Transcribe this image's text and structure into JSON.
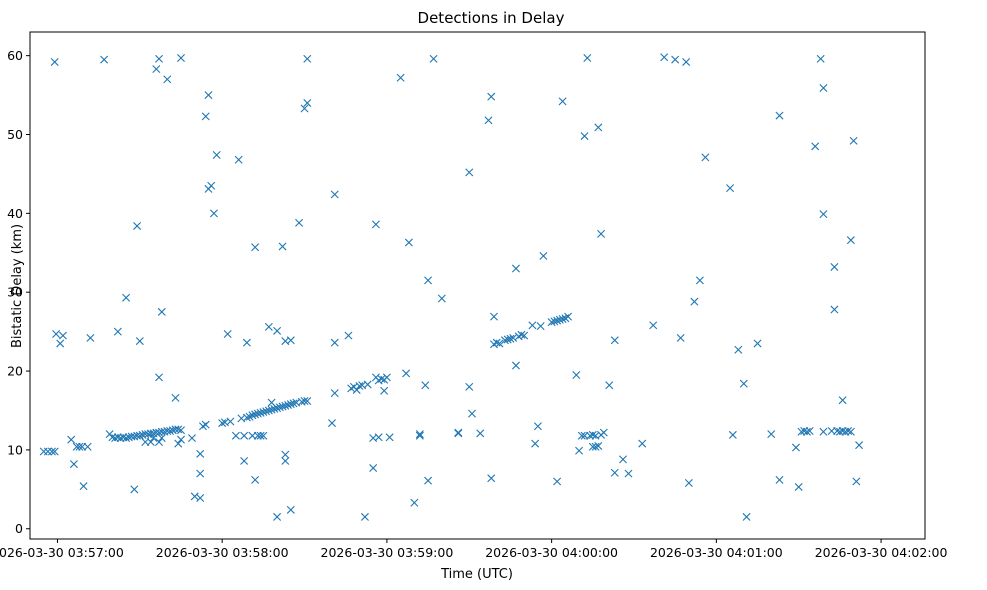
{
  "chart_data": {
    "type": "scatter",
    "title": "Detections in Delay",
    "xlabel": "Time (UTC)",
    "ylabel": "Bistatic Delay (km)",
    "x_unit": "seconds after 2026-03-30 03:57:00",
    "xlim": [
      -10,
      316
    ],
    "ylim": [
      -1.3,
      63
    ],
    "x_ticks": [
      {
        "value": 0,
        "label": "2026-03-30 03:57:00"
      },
      {
        "value": 60,
        "label": "2026-03-30 03:58:00"
      },
      {
        "value": 120,
        "label": "2026-03-30 03:59:00"
      },
      {
        "value": 180,
        "label": "2026-03-30 04:00:00"
      },
      {
        "value": 240,
        "label": "2026-03-30 04:01:00"
      },
      {
        "value": 300,
        "label": "2026-03-30 04:02:00"
      }
    ],
    "y_ticks": [
      0,
      10,
      20,
      30,
      40,
      50,
      60
    ],
    "marker": "x",
    "color": "#1f77b4",
    "grid": false,
    "legend": "none",
    "points": [
      [
        -5,
        9.8
      ],
      [
        -3.5,
        9.8
      ],
      [
        -2,
        9.8
      ],
      [
        -1,
        9.8
      ],
      [
        -1,
        59.2
      ],
      [
        -0.5,
        24.7
      ],
      [
        1,
        23.5
      ],
      [
        2,
        24.5
      ],
      [
        5,
        11.3
      ],
      [
        6,
        8.2
      ],
      [
        7,
        10.4
      ],
      [
        8,
        10.4
      ],
      [
        9,
        10.4
      ],
      [
        9.5,
        5.4
      ],
      [
        11,
        10.4
      ],
      [
        12,
        24.2
      ],
      [
        17,
        59.5
      ],
      [
        19,
        12
      ],
      [
        20,
        11.6
      ],
      [
        21,
        11.5
      ],
      [
        22,
        11.6
      ],
      [
        23,
        11.5
      ],
      [
        24,
        11.6
      ],
      [
        25,
        11.5
      ],
      [
        26,
        11.6
      ],
      [
        27,
        11.7
      ],
      [
        28,
        11.7
      ],
      [
        29,
        11.8
      ],
      [
        30,
        11.8
      ],
      [
        31,
        11.9
      ],
      [
        32,
        12
      ],
      [
        33,
        12
      ],
      [
        34,
        12.1
      ],
      [
        35,
        12.1
      ],
      [
        36,
        12.2
      ],
      [
        37,
        12.2
      ],
      [
        38,
        12.3
      ],
      [
        39,
        12.3
      ],
      [
        40,
        12.4
      ],
      [
        41,
        12.4
      ],
      [
        42,
        12.5
      ],
      [
        43,
        12.6
      ],
      [
        44,
        12.6
      ],
      [
        45,
        12.5
      ],
      [
        22,
        25
      ],
      [
        25,
        29.3
      ],
      [
        28,
        5
      ],
      [
        29,
        38.4
      ],
      [
        30,
        23.8
      ],
      [
        32,
        11
      ],
      [
        34,
        11
      ],
      [
        35,
        11.5
      ],
      [
        37,
        11
      ],
      [
        38,
        11.5
      ],
      [
        36,
        58.3
      ],
      [
        37,
        59.6
      ],
      [
        37,
        19.2
      ],
      [
        38,
        27.5
      ],
      [
        40,
        57
      ],
      [
        43,
        16.6
      ],
      [
        44,
        10.8
      ],
      [
        45,
        59.7
      ],
      [
        45,
        11.3
      ],
      [
        49,
        11.5
      ],
      [
        50,
        4.1
      ],
      [
        52,
        9.5
      ],
      [
        52,
        7
      ],
      [
        52,
        3.9
      ],
      [
        53,
        13
      ],
      [
        54,
        52.3
      ],
      [
        54,
        13.2
      ],
      [
        55,
        55
      ],
      [
        55,
        43.1
      ],
      [
        56,
        43.5
      ],
      [
        57,
        40
      ],
      [
        58,
        47.4
      ],
      [
        60,
        13.4
      ],
      [
        61,
        13.5
      ],
      [
        62,
        24.7
      ],
      [
        63,
        13.6
      ],
      [
        65,
        11.8
      ],
      [
        66,
        46.8
      ],
      [
        67,
        14
      ],
      [
        68,
        8.6
      ],
      [
        68,
        11.8
      ],
      [
        69,
        23.6
      ],
      [
        69,
        14.1
      ],
      [
        70,
        14.2
      ],
      [
        71,
        14.4
      ],
      [
        71,
        11.8
      ],
      [
        72,
        14.5
      ],
      [
        72,
        6.2
      ],
      [
        72,
        35.7
      ],
      [
        73,
        11.8
      ],
      [
        73,
        14.6
      ],
      [
        74,
        14.7
      ],
      [
        74,
        11.8
      ],
      [
        75,
        14.8
      ],
      [
        75,
        11.8
      ],
      [
        76,
        14.9
      ],
      [
        77,
        15
      ],
      [
        77,
        25.6
      ],
      [
        78,
        15.1
      ],
      [
        78,
        16
      ],
      [
        79,
        15.2
      ],
      [
        80,
        15.3
      ],
      [
        80,
        25.1
      ],
      [
        80,
        1.5
      ],
      [
        81,
        15.4
      ],
      [
        82,
        35.8
      ],
      [
        82,
        15.5
      ],
      [
        83,
        15.6
      ],
      [
        83,
        23.8
      ],
      [
        83,
        9.4
      ],
      [
        83,
        8.6
      ],
      [
        84,
        15.7
      ],
      [
        85,
        15.8
      ],
      [
        85,
        23.9
      ],
      [
        85,
        2.4
      ],
      [
        86,
        15.9
      ],
      [
        87,
        16
      ],
      [
        88,
        38.8
      ],
      [
        89,
        16.1
      ],
      [
        90,
        16.2
      ],
      [
        90,
        53.3
      ],
      [
        91,
        54
      ],
      [
        91,
        59.6
      ],
      [
        91,
        16.2
      ],
      [
        100,
        13.4
      ],
      [
        101,
        42.4
      ],
      [
        101,
        23.6
      ],
      [
        101,
        17.2
      ],
      [
        106,
        24.5
      ],
      [
        107,
        17.8
      ],
      [
        108,
        18
      ],
      [
        109,
        17.6
      ],
      [
        110,
        18.1
      ],
      [
        111,
        18.2
      ],
      [
        112,
        1.5
      ],
      [
        113,
        18.3
      ],
      [
        115,
        7.7
      ],
      [
        115,
        11.5
      ],
      [
        116,
        38.6
      ],
      [
        116,
        19.2
      ],
      [
        117,
        18.8
      ],
      [
        117,
        11.6
      ],
      [
        118,
        19
      ],
      [
        119,
        18.9
      ],
      [
        119,
        17.5
      ],
      [
        120,
        19.2
      ],
      [
        121,
        11.6
      ],
      [
        125,
        57.2
      ],
      [
        127,
        19.7
      ],
      [
        128,
        36.3
      ],
      [
        130,
        3.3
      ],
      [
        132,
        12
      ],
      [
        132,
        11.8
      ],
      [
        134,
        18.2
      ],
      [
        135,
        31.5
      ],
      [
        135,
        6.1
      ],
      [
        137,
        59.6
      ],
      [
        140,
        29.2
      ],
      [
        146,
        12.1
      ],
      [
        146,
        12.2
      ],
      [
        150,
        45.2
      ],
      [
        151,
        14.6
      ],
      [
        150,
        18
      ],
      [
        154,
        12.1
      ],
      [
        157,
        51.8
      ],
      [
        158,
        54.8
      ],
      [
        158,
        6.4
      ],
      [
        159,
        26.9
      ],
      [
        159,
        23.4
      ],
      [
        160,
        23.6
      ],
      [
        161,
        23.5
      ],
      [
        163,
        23.9
      ],
      [
        164,
        24
      ],
      [
        165,
        24.1
      ],
      [
        166,
        24.2
      ],
      [
        167,
        33
      ],
      [
        167,
        20.7
      ],
      [
        168,
        24.4
      ],
      [
        169,
        24.6
      ],
      [
        170,
        24.5
      ],
      [
        173,
        25.8
      ],
      [
        174,
        10.8
      ],
      [
        175,
        13
      ],
      [
        176,
        25.7
      ],
      [
        177,
        34.6
      ],
      [
        180,
        26.2
      ],
      [
        181,
        26.3
      ],
      [
        182,
        26.4
      ],
      [
        182,
        6
      ],
      [
        183,
        26.5
      ],
      [
        184,
        54.2
      ],
      [
        184,
        26.6
      ],
      [
        185,
        26.7
      ],
      [
        186,
        26.9
      ],
      [
        189,
        19.5
      ],
      [
        190,
        9.9
      ],
      [
        191,
        11.8
      ],
      [
        192,
        49.8
      ],
      [
        192,
        11.8
      ],
      [
        193,
        59.7
      ],
      [
        194,
        11.8
      ],
      [
        195,
        10.4
      ],
      [
        195,
        11.9
      ],
      [
        196,
        10.4
      ],
      [
        196,
        11.8
      ],
      [
        197,
        50.9
      ],
      [
        197,
        10.5
      ],
      [
        198,
        11.9
      ],
      [
        198,
        37.4
      ],
      [
        199,
        12.2
      ],
      [
        201,
        18.2
      ],
      [
        203,
        23.9
      ],
      [
        203,
        7.1
      ],
      [
        206,
        8.8
      ],
      [
        208,
        7
      ],
      [
        213,
        10.8
      ],
      [
        217,
        25.8
      ],
      [
        221,
        59.8
      ],
      [
        225,
        59.5
      ],
      [
        227,
        24.2
      ],
      [
        229,
        59.2
      ],
      [
        230,
        5.8
      ],
      [
        232,
        28.8
      ],
      [
        234,
        31.5
      ],
      [
        236,
        47.1
      ],
      [
        245,
        43.2
      ],
      [
        246,
        11.9
      ],
      [
        248,
        22.7
      ],
      [
        250,
        18.4
      ],
      [
        251,
        1.5
      ],
      [
        255,
        23.5
      ],
      [
        260,
        12
      ],
      [
        263,
        52.4
      ],
      [
        263,
        6.2
      ],
      [
        269,
        10.3
      ],
      [
        270,
        5.3
      ],
      [
        271,
        12.3
      ],
      [
        272,
        12.4
      ],
      [
        273,
        12.3
      ],
      [
        274,
        12.4
      ],
      [
        276,
        48.5
      ],
      [
        278,
        59.6
      ],
      [
        279,
        55.9
      ],
      [
        279,
        39.9
      ],
      [
        279,
        12.3
      ],
      [
        282,
        12.4
      ],
      [
        283,
        27.8
      ],
      [
        283,
        33.2
      ],
      [
        284,
        12.4
      ],
      [
        285,
        12.3
      ],
      [
        286,
        16.3
      ],
      [
        286,
        12.4
      ],
      [
        287,
        12.3
      ],
      [
        288,
        12.4
      ],
      [
        289,
        12.3
      ],
      [
        289,
        36.6
      ],
      [
        290,
        49.2
      ],
      [
        291,
        6
      ],
      [
        292,
        10.6
      ]
    ]
  }
}
